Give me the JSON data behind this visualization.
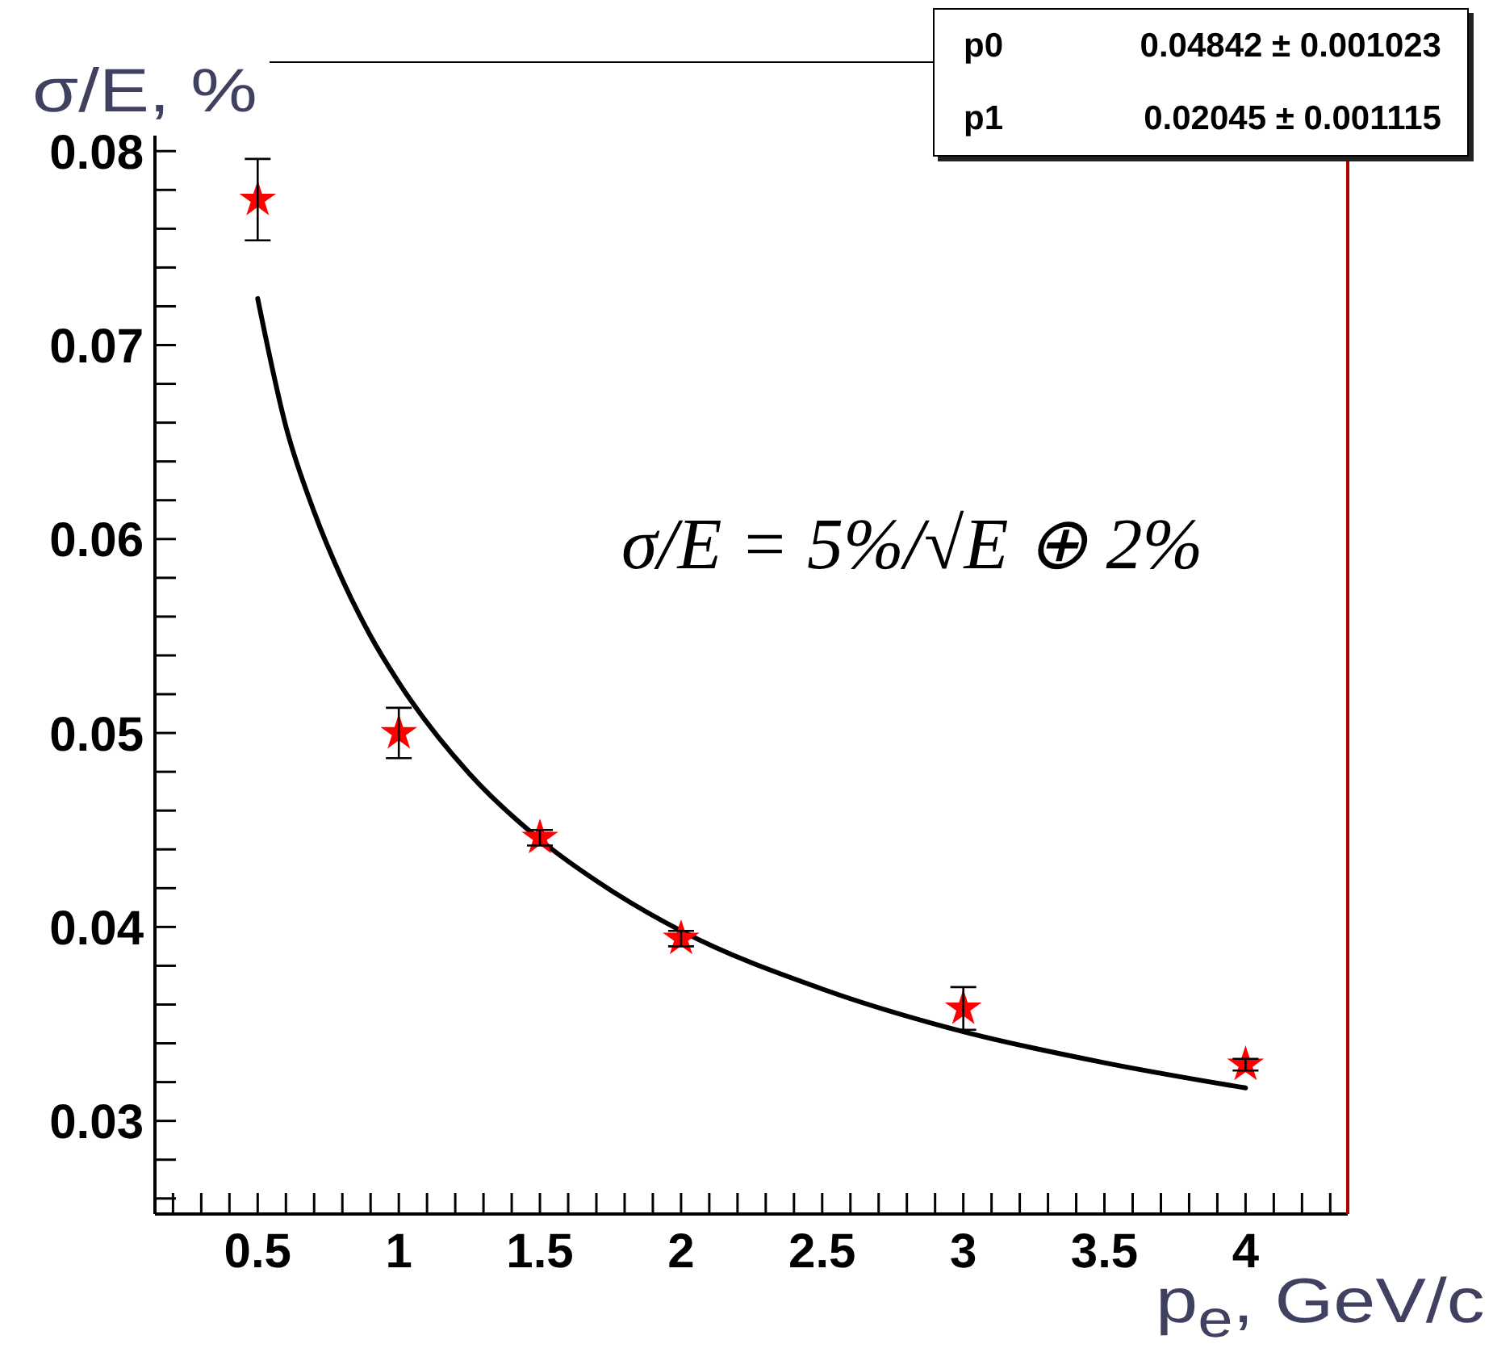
{
  "chart_data": {
    "type": "scatter",
    "xlabel": "p$_{e}$, GeV/c",
    "ylabel": "σ/E, %",
    "x": [
      0.5,
      1,
      1.5,
      2,
      3,
      4
    ],
    "xlim": [
      0.136,
      4.362
    ],
    "ylim": [
      0.0252,
      0.0808
    ],
    "xticks": [
      {
        "value": 0.2,
        "label": null
      },
      {
        "value": 0.3,
        "label": null
      },
      {
        "value": 0.4,
        "label": null
      },
      0.5,
      {
        "value": 0.6,
        "label": null
      },
      {
        "value": 0.7,
        "label": null
      },
      {
        "value": 0.8,
        "label": null
      },
      {
        "value": 0.9,
        "label": null
      },
      1,
      {
        "value": 1.1,
        "label": null
      },
      {
        "value": 1.2,
        "label": null
      },
      {
        "value": 1.3,
        "label": null
      },
      {
        "value": 1.4,
        "label": null
      },
      1.5,
      {
        "value": 1.6,
        "label": null
      },
      {
        "value": 1.7,
        "label": null
      },
      {
        "value": 1.8,
        "label": null
      },
      {
        "value": 1.9,
        "label": null
      },
      2,
      {
        "value": 2.1,
        "label": null
      },
      {
        "value": 2.2,
        "label": null
      },
      {
        "value": 2.3,
        "label": null
      },
      {
        "value": 2.4,
        "label": null
      },
      2.5,
      {
        "value": 2.6,
        "label": null
      },
      {
        "value": 2.7,
        "label": null
      },
      {
        "value": 2.8,
        "label": null
      },
      {
        "value": 2.9,
        "label": null
      },
      3,
      {
        "value": 3.1,
        "label": null
      },
      {
        "value": 3.2,
        "label": null
      },
      {
        "value": 3.3,
        "label": null
      },
      {
        "value": 3.4,
        "label": null
      },
      3.5,
      {
        "value": 3.6,
        "label": null
      },
      {
        "value": 3.7,
        "label": null
      },
      {
        "value": 3.8,
        "label": null
      },
      {
        "value": 3.9,
        "label": null
      },
      4,
      {
        "value": 4.1,
        "label": null
      },
      {
        "value": 4.2,
        "label": null
      },
      {
        "value": 4.3,
        "label": null
      }
    ],
    "yticks": [
      {
        "value": 0.026,
        "label": null
      },
      {
        "value": 0.028,
        "label": null
      },
      0.03,
      {
        "value": 0.032,
        "label": null
      },
      {
        "value": 0.034,
        "label": null
      },
      {
        "value": 0.036,
        "label": null
      },
      {
        "value": 0.038,
        "label": null
      },
      0.04,
      {
        "value": 0.042,
        "label": null
      },
      {
        "value": 0.044,
        "label": null
      },
      {
        "value": 0.046,
        "label": null
      },
      {
        "value": 0.048,
        "label": null
      },
      0.05,
      {
        "value": 0.052,
        "label": null
      },
      {
        "value": 0.054,
        "label": null
      },
      {
        "value": 0.056,
        "label": null
      },
      {
        "value": 0.058,
        "label": null
      },
      0.06,
      {
        "value": 0.062,
        "label": null
      },
      {
        "value": 0.064,
        "label": null
      },
      {
        "value": 0.066,
        "label": null
      },
      {
        "value": 0.068,
        "label": null
      },
      0.07,
      {
        "value": 0.072,
        "label": null
      },
      {
        "value": 0.074,
        "label": null
      },
      {
        "value": 0.076,
        "label": null
      },
      {
        "value": 0.078,
        "label": null
      },
      0.08
    ],
    "series": [
      {
        "color": "#ff0000",
        "marker": "star",
        "values": [
          0.0775,
          0.05,
          0.0446,
          0.0394,
          0.0358,
          0.0329
        ],
        "errors": [
          0.0021,
          0.0013,
          0.0004,
          0.0004,
          0.0011,
          0.0003
        ]
      },
      {
        "type": "line",
        "color": "#000000",
        "marker": "none",
        "line_style": "solid",
        "x": [
          0.5,
          0.6,
          0.7,
          0.8,
          0.9,
          1,
          1.25,
          1.5,
          1.75,
          2,
          2.5,
          3,
          3.5,
          4
        ],
        "values": [
          0.0724,
          0.0658,
          0.0614,
          0.0579,
          0.055,
          0.0526,
          0.0479,
          0.0445,
          0.0419,
          0.0398,
          0.0368,
          0.0346,
          0.033,
          0.0317
        ]
      }
    ],
    "annotations": [
      "σ/E = 5%/√E ⊕ 2%",
      "p0",
      "0.04842 ± 0.001023",
      "p1",
      "0.02045 ± 0.001115"
    ]
  }
}
